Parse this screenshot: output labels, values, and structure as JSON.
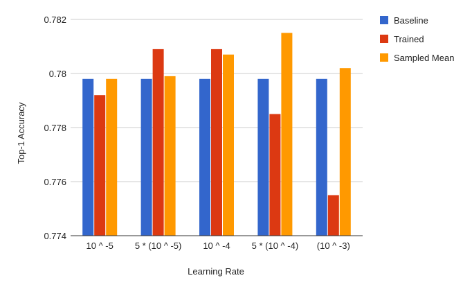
{
  "chart_data": {
    "type": "bar",
    "title": "",
    "xlabel": "Learning Rate",
    "ylabel": "Top-1 Accuracy",
    "categories": [
      "10 ^ -5",
      "5 * (10 ^ -5)",
      "10 ^ -4",
      "5 * (10 ^ -4)",
      "(10 ^ -3)"
    ],
    "series": [
      {
        "name": "Baseline",
        "color": "#3366cc",
        "values": [
          0.7798,
          0.7798,
          0.7798,
          0.7798,
          0.7798
        ]
      },
      {
        "name": "Trained",
        "color": "#dc3912",
        "values": [
          0.7792,
          0.7809,
          0.7809,
          0.7785,
          0.7755
        ]
      },
      {
        "name": "Sampled Mean",
        "color": "#ff9900",
        "values": [
          0.7798,
          0.7799,
          0.7807,
          0.7815,
          0.7802
        ]
      }
    ],
    "ylim": [
      0.774,
      0.782
    ],
    "yticks": [
      0.774,
      0.776,
      0.778,
      0.78,
      0.782
    ],
    "ytick_labels": [
      "0.774",
      "0.776",
      "0.778",
      "0.78",
      "0.782"
    ],
    "grid": true,
    "legend_position": "right"
  }
}
